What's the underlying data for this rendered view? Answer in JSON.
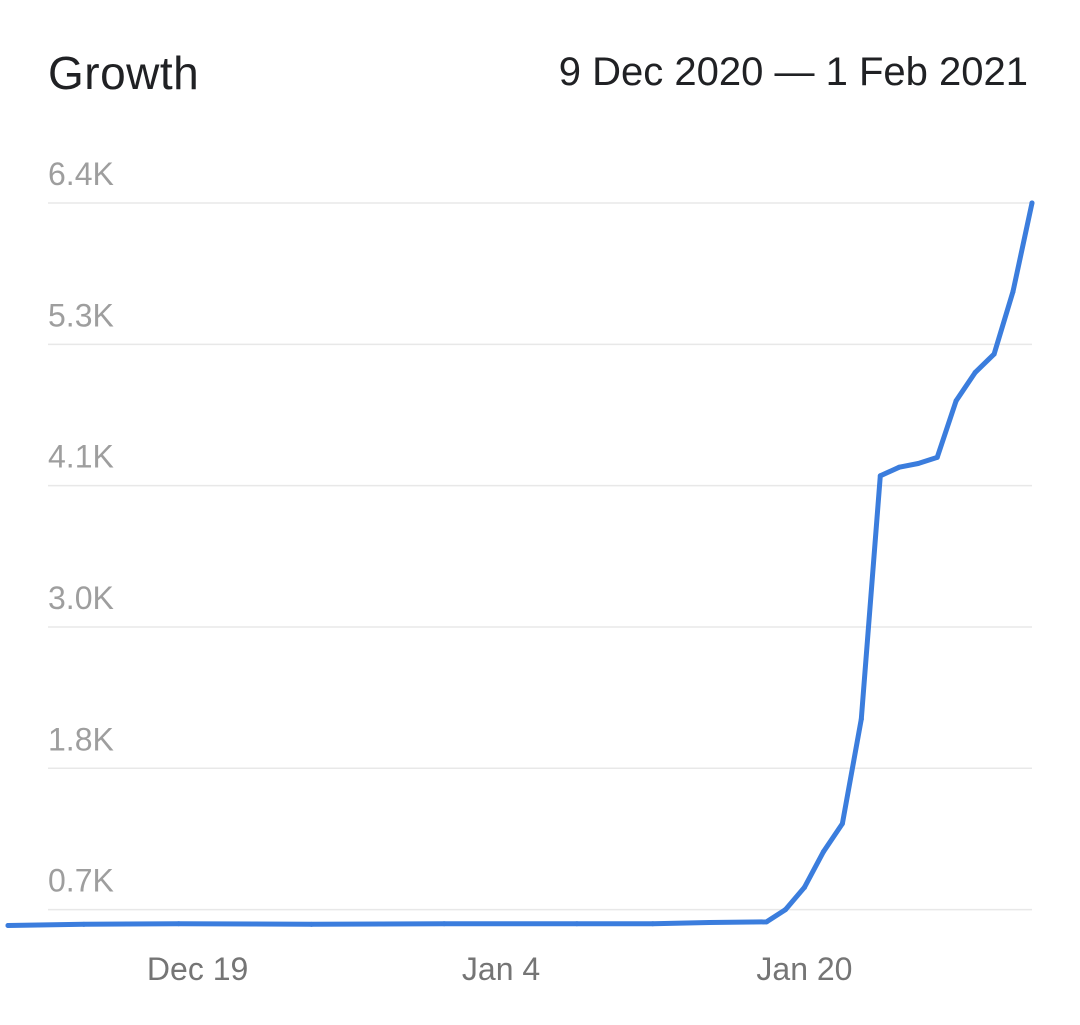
{
  "header": {
    "title": "Growth",
    "date_range": "9 Dec 2020 — 1 Feb 2021"
  },
  "colors": {
    "line": "#3b7ddd",
    "grid": "#e8e8e8",
    "y_tick_text": "#9e9e9e",
    "x_tick_text": "#757575",
    "title_text": "#202124"
  },
  "chart_data": {
    "type": "line",
    "title": "Growth",
    "subtitle": "9 Dec 2020 — 1 Feb 2021",
    "xlabel": "",
    "ylabel": "",
    "grid": true,
    "legend": "none",
    "y_ticks": [
      {
        "label": "6.4K",
        "value": 6400
      },
      {
        "label": "5.3K",
        "value": 5250
      },
      {
        "label": "4.1K",
        "value": 4100
      },
      {
        "label": "3.0K",
        "value": 2950
      },
      {
        "label": "1.8K",
        "value": 1800
      },
      {
        "label": "0.7K",
        "value": 650
      }
    ],
    "x_ticks": [
      {
        "label": "Dec 19",
        "date": "2020-12-19"
      },
      {
        "label": "Jan 4",
        "date": "2021-01-04"
      },
      {
        "label": "Jan 20",
        "date": "2021-01-20"
      }
    ],
    "xlim": [
      "2020-12-09",
      "2021-02-01"
    ],
    "ylim": [
      500,
      6400
    ],
    "series": [
      {
        "values": [
          {
            "date": "2020-12-09",
            "value": 520
          },
          {
            "date": "2020-12-13",
            "value": 530
          },
          {
            "date": "2020-12-18",
            "value": 535
          },
          {
            "date": "2020-12-25",
            "value": 530
          },
          {
            "date": "2021-01-01",
            "value": 535
          },
          {
            "date": "2021-01-08",
            "value": 535
          },
          {
            "date": "2021-01-12",
            "value": 535
          },
          {
            "date": "2021-01-15",
            "value": 545
          },
          {
            "date": "2021-01-18",
            "value": 550
          },
          {
            "date": "2021-01-19",
            "value": 650
          },
          {
            "date": "2021-01-20",
            "value": 830
          },
          {
            "date": "2021-01-21",
            "value": 1120
          },
          {
            "date": "2021-01-22",
            "value": 1350
          },
          {
            "date": "2021-01-23",
            "value": 2200
          },
          {
            "date": "2021-01-24",
            "value": 4180
          },
          {
            "date": "2021-01-25",
            "value": 4250
          },
          {
            "date": "2021-01-26",
            "value": 4280
          },
          {
            "date": "2021-01-27",
            "value": 4330
          },
          {
            "date": "2021-01-28",
            "value": 4790
          },
          {
            "date": "2021-01-29",
            "value": 5020
          },
          {
            "date": "2021-01-30",
            "value": 5170
          },
          {
            "date": "2021-01-31",
            "value": 5680
          },
          {
            "date": "2021-02-01",
            "value": 6400
          }
        ]
      }
    ]
  }
}
